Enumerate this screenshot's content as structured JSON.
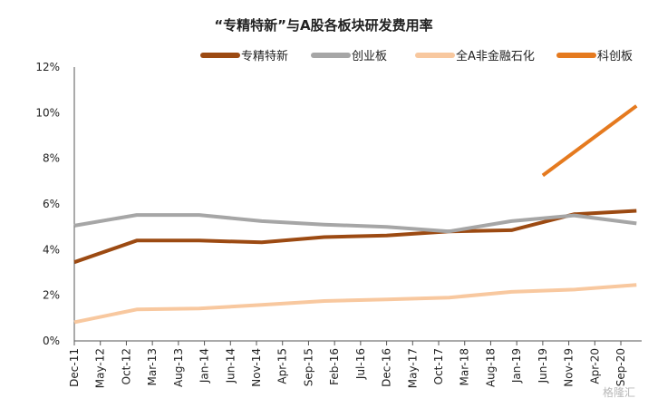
{
  "chart_data": {
    "type": "line",
    "title": "“专精特新”与A股各板块研发费用率",
    "xlabel": "",
    "ylabel": "",
    "ylim": [
      0,
      12
    ],
    "y_ticks": [
      "0%",
      "2%",
      "4%",
      "6%",
      "8%",
      "10%",
      "12%"
    ],
    "x_ticks": [
      "Dec-11",
      "May-12",
      "Oct-12",
      "Mar-13",
      "Aug-13",
      "Jan-14",
      "Jun-14",
      "Nov-14",
      "Apr-15",
      "Sep-15",
      "Feb-16",
      "Jul-16",
      "Dec-16",
      "May-17",
      "Oct-17",
      "Mar-18",
      "Aug-18",
      "Jan-19",
      "Jun-19",
      "Nov-19",
      "Apr-20",
      "Sep-20"
    ],
    "x_range": [
      "Dec-11",
      "Jan-21"
    ],
    "legend_position": "top-right",
    "grid": false,
    "series": [
      {
        "name": "专精特新",
        "color": "#9c4a12",
        "points": [
          [
            "Dec-11",
            3.45
          ],
          [
            "Dec-12",
            4.4
          ],
          [
            "Dec-13",
            4.4
          ],
          [
            "Dec-14",
            4.32
          ],
          [
            "Dec-15",
            4.55
          ],
          [
            "Dec-16",
            4.62
          ],
          [
            "Dec-17",
            4.8
          ],
          [
            "Dec-18",
            4.85
          ],
          [
            "Dec-19",
            5.55
          ],
          [
            "Dec-20",
            5.7
          ]
        ]
      },
      {
        "name": "创业板",
        "color": "#a6a6a6",
        "points": [
          [
            "Dec-11",
            5.05
          ],
          [
            "Dec-12",
            5.52
          ],
          [
            "Dec-13",
            5.52
          ],
          [
            "Dec-14",
            5.25
          ],
          [
            "Dec-15",
            5.1
          ],
          [
            "Dec-16",
            5.0
          ],
          [
            "Dec-17",
            4.8
          ],
          [
            "Dec-18",
            5.25
          ],
          [
            "Dec-19",
            5.5
          ],
          [
            "Dec-20",
            5.15
          ]
        ]
      },
      {
        "name": "全A非金融石化",
        "color": "#f8c89f",
        "points": [
          [
            "Dec-11",
            0.82
          ],
          [
            "Dec-12",
            1.38
          ],
          [
            "Dec-13",
            1.42
          ],
          [
            "Dec-14",
            1.58
          ],
          [
            "Dec-15",
            1.75
          ],
          [
            "Dec-16",
            1.82
          ],
          [
            "Dec-17",
            1.9
          ],
          [
            "Dec-18",
            2.15
          ],
          [
            "Dec-19",
            2.25
          ],
          [
            "Dec-20",
            2.45
          ]
        ]
      },
      {
        "name": "科创板",
        "color": "#e57a1f",
        "points": [
          [
            "Jun-19",
            7.25
          ],
          [
            "Dec-20",
            10.3
          ]
        ]
      }
    ]
  },
  "watermark": "格隆汇"
}
